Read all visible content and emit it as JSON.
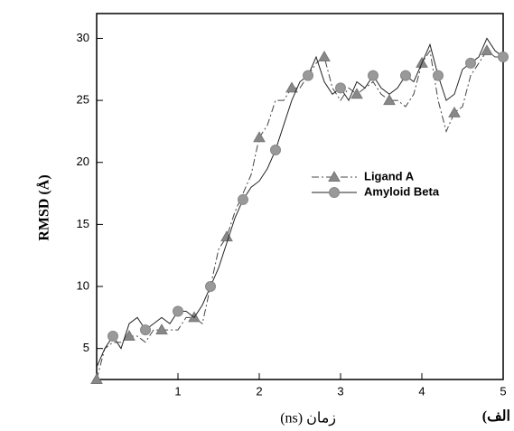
{
  "chart_data": {
    "type": "line",
    "x_label": "زمان (ns)",
    "y_label": "RMSD (Å)",
    "panel_label": "الف)",
    "x": [
      0,
      0.1,
      0.2,
      0.3,
      0.4,
      0.5,
      0.6,
      0.7,
      0.8,
      0.9,
      1,
      1.1,
      1.2,
      1.3,
      1.4,
      1.5,
      1.6,
      1.7,
      1.8,
      1.9,
      2,
      2.1,
      2.2,
      2.3,
      2.4,
      2.5,
      2.6,
      2.7,
      2.8,
      2.9,
      3,
      3.1,
      3.2,
      3.3,
      3.4,
      3.5,
      3.6,
      3.7,
      3.8,
      3.9,
      4,
      4.1,
      4.2,
      4.3,
      4.4,
      4.5,
      4.6,
      4.7,
      4.8,
      4.9,
      5
    ],
    "series": [
      {
        "name": "Ligand A",
        "color": "#444444",
        "marker": "triangle",
        "values": [
          2.5,
          5,
          5.5,
          5.5,
          6,
          6,
          5.5,
          6.5,
          6.5,
          6.5,
          6.5,
          7.5,
          7.5,
          7,
          10,
          13,
          14,
          16,
          17.5,
          19,
          22,
          23,
          25,
          25,
          26,
          26,
          27,
          28,
          28.5,
          26,
          25,
          26,
          25.5,
          26,
          26.5,
          25.5,
          25,
          25,
          24.5,
          25.5,
          28,
          29,
          25,
          22.5,
          24,
          24.5,
          27,
          28,
          29,
          28.5,
          28.5
        ]
      },
      {
        "name": "Amyloid Beta",
        "color": "#222222",
        "marker": "circle",
        "values": [
          3.5,
          5,
          6,
          5,
          7,
          7.5,
          6.5,
          7,
          7.5,
          7,
          8,
          8,
          7.5,
          8.5,
          10,
          11.5,
          13.5,
          15.5,
          17,
          18,
          18.5,
          19.5,
          21,
          23,
          25,
          26.5,
          27,
          28.5,
          26.5,
          25.5,
          26,
          25,
          26.5,
          26,
          27,
          26,
          25.5,
          26,
          27,
          26.5,
          28,
          29.5,
          27,
          25,
          25.5,
          27.5,
          28,
          28.5,
          30,
          29,
          28.5
        ]
      }
    ],
    "xlim": [
      0,
      5
    ],
    "ylim": [
      2.5,
      32
    ],
    "xticks": [
      1,
      2,
      3,
      4,
      5
    ],
    "yticks": [
      5,
      10,
      15,
      20,
      25,
      30
    ]
  }
}
